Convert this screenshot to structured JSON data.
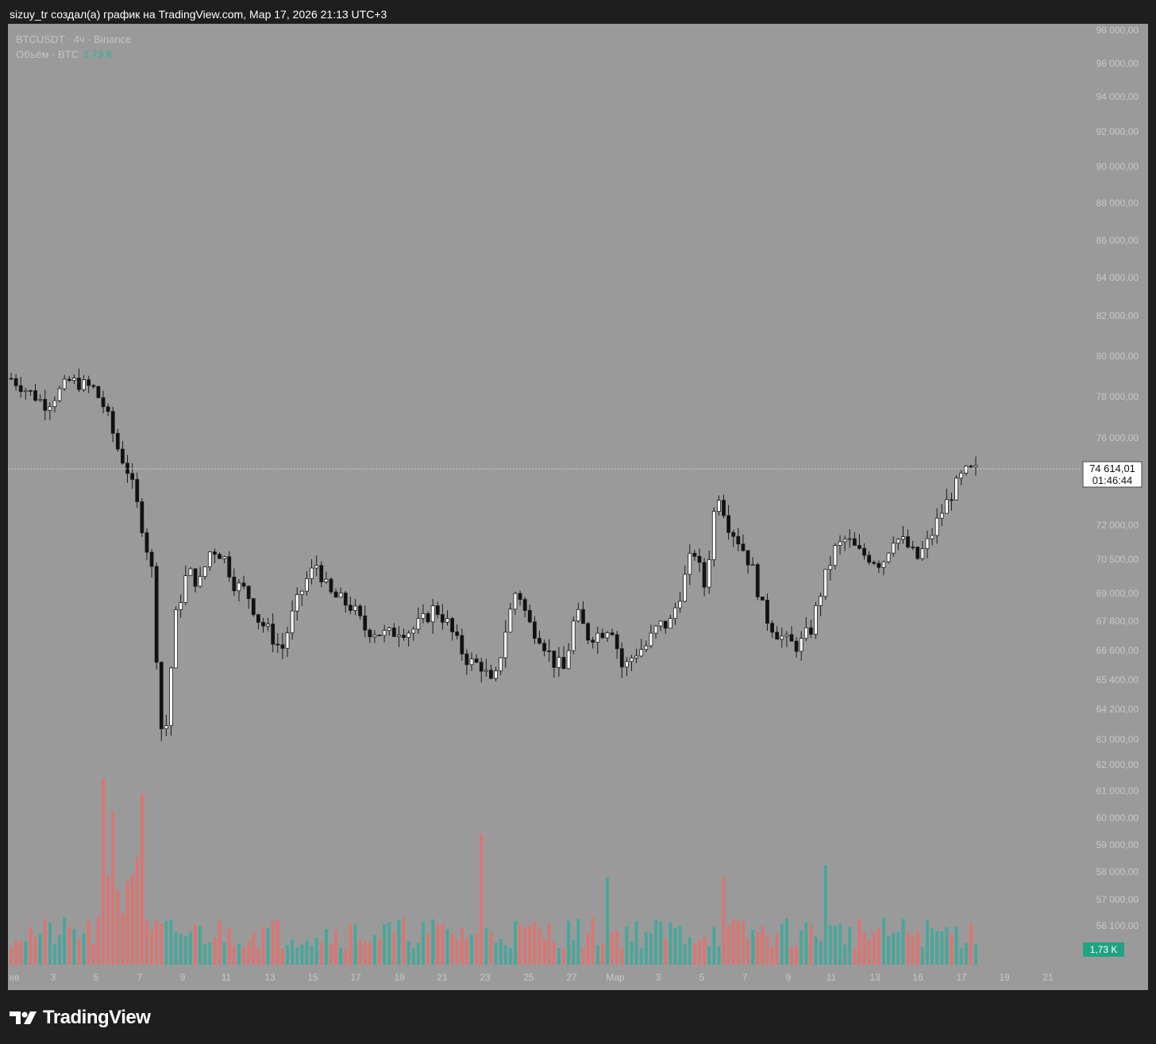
{
  "header": {
    "title": "sizuy_tr создал(а) график на TradingView.com, Мар 17, 2026 21:13 UTC+3"
  },
  "legend": {
    "symbol_line": "BTCUSDT · 4ч · Binance",
    "volume_label": "Объём · BTC",
    "volume_value": "1,73 K"
  },
  "footer": {
    "brand": "TradingView",
    "logo_icon": "tradingview-logo-icon"
  },
  "colors": {
    "background": "#9a9a9a",
    "frame": "#1e1e1e",
    "volume_up": "#4aa69a",
    "volume_down": "#d97672",
    "candle_up": "#ffffff",
    "candle_down": "#111111",
    "volume_badge": "#1fa383"
  },
  "chart_data": {
    "type": "candlestick",
    "symbol": "BTCUSDT",
    "timeframe": "4ч",
    "exchange": "Binance",
    "last_price": "74 614,01",
    "countdown": "01:46:44",
    "price_ticks": [
      "98 000,00",
      "96 000,00",
      "94 000,00",
      "92 000,00",
      "90 000,00",
      "88 000,00",
      "86 000,00",
      "84 000,00",
      "82 000,00",
      "80 000,00",
      "78 000,00",
      "76 000,00",
      "72 000,00",
      "70 500,00",
      "69 000,00",
      "67 800,00",
      "66 600,00",
      "65 400,00",
      "64 200,00",
      "63 000,00",
      "62 000,00",
      "61 000,00",
      "60 000,00",
      "59 000,00",
      "58 000,00",
      "57 000,00",
      "56 100,00"
    ],
    "x_ticks": [
      "ев",
      "3",
      "5",
      "7",
      "9",
      "11",
      "13",
      "15",
      "17",
      "19",
      "21",
      "23",
      "25",
      "27",
      "Мар",
      "3",
      "5",
      "7",
      "9",
      "11",
      "13",
      "16",
      "17",
      "19",
      "21"
    ],
    "volume_badge": "1,73 K",
    "close_path": [
      [
        0,
        78900
      ],
      [
        3,
        77600
      ],
      [
        5,
        78800
      ],
      [
        7,
        78400
      ],
      [
        8,
        77400
      ],
      [
        9,
        75600
      ],
      [
        10,
        74400
      ],
      [
        11,
        72300
      ],
      [
        12,
        69900
      ],
      [
        12.6,
        64200
      ],
      [
        13,
        62500
      ],
      [
        13.5,
        65400
      ],
      [
        14,
        68000
      ],
      [
        15,
        70000
      ],
      [
        16,
        69400
      ],
      [
        17,
        71000
      ],
      [
        18,
        70700
      ],
      [
        19,
        69400
      ],
      [
        20,
        69100
      ],
      [
        21,
        67900
      ],
      [
        22,
        67300
      ],
      [
        23,
        66600
      ],
      [
        24,
        68200
      ],
      [
        25,
        69500
      ],
      [
        26,
        70300
      ],
      [
        27,
        69000
      ],
      [
        28,
        68700
      ],
      [
        29,
        68400
      ],
      [
        30,
        67500
      ],
      [
        31,
        67400
      ],
      [
        32,
        67200
      ],
      [
        33,
        67500
      ],
      [
        34,
        67400
      ],
      [
        35,
        67800
      ],
      [
        36,
        68400
      ],
      [
        37,
        67800
      ],
      [
        38,
        66800
      ],
      [
        39,
        66100
      ],
      [
        40,
        66000
      ],
      [
        41,
        65000
      ],
      [
        42,
        67400
      ],
      [
        43,
        69300
      ],
      [
        44,
        67700
      ],
      [
        45,
        67200
      ],
      [
        46,
        66200
      ],
      [
        47,
        65800
      ],
      [
        48,
        68200
      ],
      [
        49,
        67200
      ],
      [
        50,
        67300
      ],
      [
        51,
        67700
      ],
      [
        52,
        65800
      ],
      [
        53,
        66500
      ],
      [
        54,
        66800
      ],
      [
        55,
        67600
      ],
      [
        56,
        67700
      ],
      [
        57,
        69200
      ],
      [
        58,
        71000
      ],
      [
        59,
        69200
      ],
      [
        60,
        73700
      ],
      [
        61,
        72000
      ],
      [
        62,
        71200
      ],
      [
        63,
        70100
      ],
      [
        64,
        68100
      ],
      [
        65,
        67400
      ],
      [
        66,
        66900
      ],
      [
        67,
        66800
      ],
      [
        68,
        67500
      ],
      [
        69,
        69400
      ],
      [
        70,
        70900
      ],
      [
        71,
        71400
      ],
      [
        72,
        70800
      ],
      [
        73,
        70600
      ],
      [
        74,
        70300
      ],
      [
        75,
        71500
      ],
      [
        76,
        71200
      ],
      [
        77,
        70500
      ],
      [
        78,
        71300
      ],
      [
        79,
        72500
      ],
      [
        80,
        73500
      ],
      [
        81,
        74400
      ],
      [
        82,
        74500
      ]
    ],
    "candle_count": 200
  }
}
